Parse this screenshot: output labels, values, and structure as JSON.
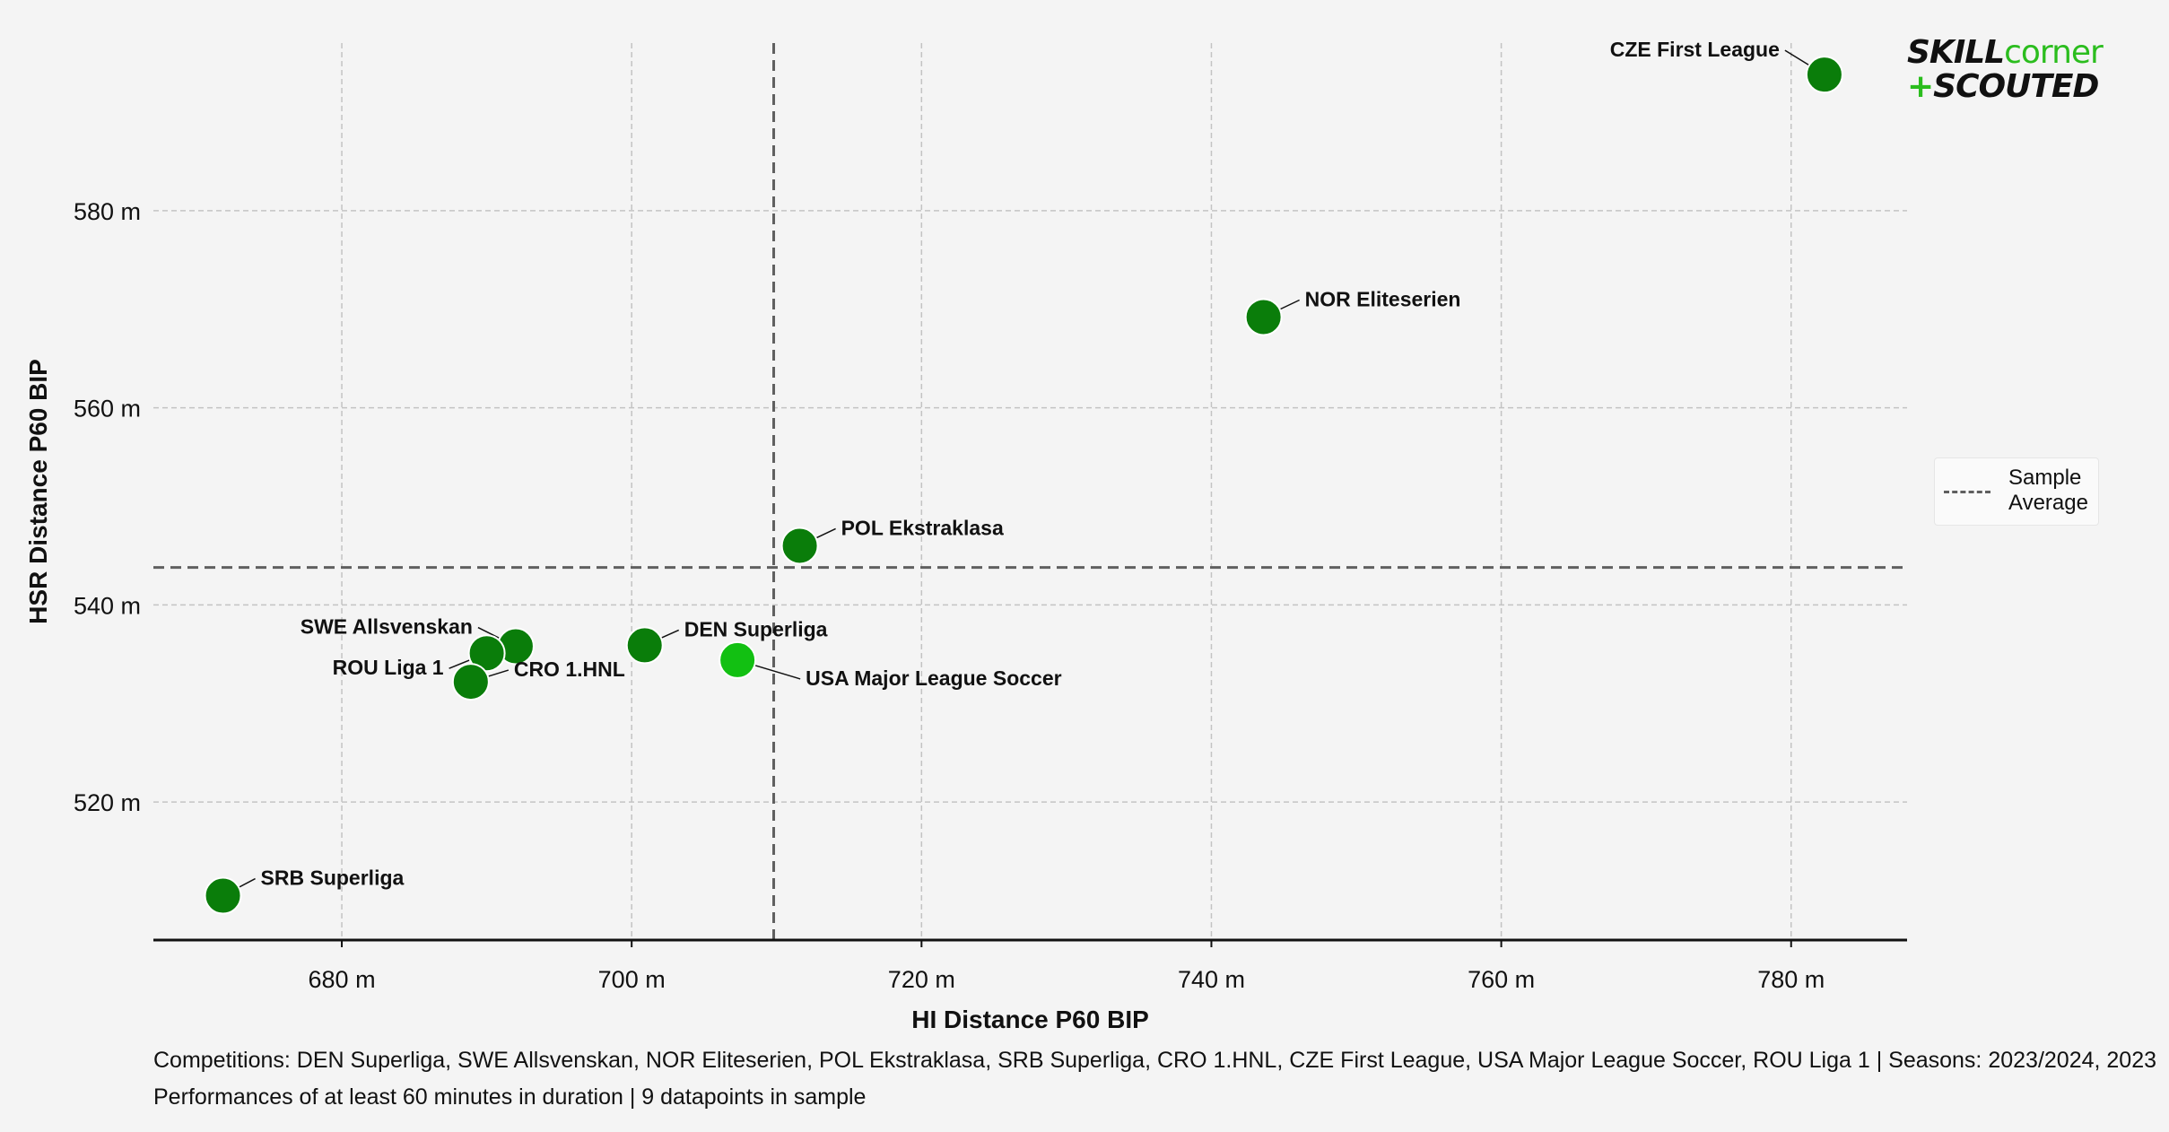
{
  "logo": {
    "word1": "SKILL",
    "word2": "corner",
    "word3": "+",
    "word4": "SCOUTED",
    "color_dark": "#111111",
    "color_green": "#2bbd1e"
  },
  "legend": {
    "label": "Sample Average"
  },
  "caption": {
    "line1": "Competitions: DEN Superliga, SWE Allsvenskan, NOR Eliteserien, POL Ekstraklasa, SRB Superliga, CRO 1.HNL, CZE First League, USA Major League Soccer, ROU Liga 1 | Seasons: 2023/2024, 2023",
    "line2": "Performances of at least 60 minutes in duration | 9 datapoints in sample"
  },
  "chart_data": {
    "type": "scatter",
    "title": "",
    "xlabel": "HI Distance P60 BIP",
    "ylabel": "HSR Distance P60 BIP",
    "xlim": [
      667,
      788
    ],
    "ylim": [
      506,
      597
    ],
    "xticks": [
      680,
      700,
      720,
      740,
      760,
      780
    ],
    "yticks": [
      520,
      540,
      560,
      580
    ],
    "tick_suffix": " m",
    "grid": true,
    "legend_position": "right",
    "averages": {
      "x": 709.8,
      "y": 543.8,
      "label": "Sample Average"
    },
    "colors": {
      "point": "#0a7d0a",
      "highlight": "#12c012",
      "avg_line": "#5f5f5f",
      "grid": "#c3c3c3"
    },
    "points": [
      {
        "name": "CZE First League",
        "x": 782.3,
        "y": 593.8,
        "highlight": false
      },
      {
        "name": "NOR Eliteserien",
        "x": 743.6,
        "y": 569.2,
        "highlight": false
      },
      {
        "name": "POL Ekstraklasa",
        "x": 711.6,
        "y": 546.0,
        "highlight": false
      },
      {
        "name": "DEN Superliga",
        "x": 700.9,
        "y": 535.9,
        "highlight": false
      },
      {
        "name": "USA Major League Soccer",
        "x": 707.3,
        "y": 534.4,
        "highlight": true
      },
      {
        "name": "SWE Allsvenskan",
        "x": 692.0,
        "y": 535.8,
        "highlight": false
      },
      {
        "name": "ROU Liga 1",
        "x": 690.0,
        "y": 535.1,
        "highlight": false
      },
      {
        "name": "CRO 1.HNL",
        "x": 688.9,
        "y": 532.2,
        "highlight": false
      },
      {
        "name": "SRB Superliga",
        "x": 671.8,
        "y": 510.5,
        "highlight": false
      }
    ]
  }
}
